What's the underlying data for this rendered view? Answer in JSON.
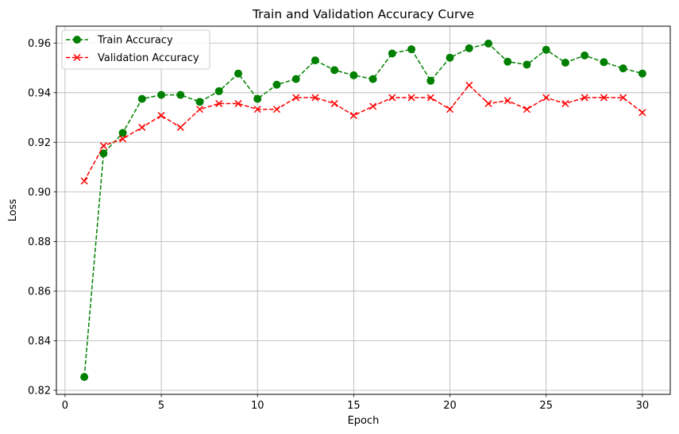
{
  "chart_data": {
    "type": "line",
    "title": "Train and Validation Accuracy Curve",
    "xlabel": "Epoch",
    "ylabel": "Loss",
    "xlim": [
      -0.45,
      31.45
    ],
    "ylim": [
      0.8184,
      0.9668
    ],
    "xticks": [
      0,
      5,
      10,
      15,
      20,
      25,
      30
    ],
    "yticks": [
      0.82,
      0.84,
      0.86,
      0.88,
      0.9,
      0.92,
      0.94,
      0.96
    ],
    "ytick_labels": [
      "0.82",
      "0.84",
      "0.86",
      "0.88",
      "0.90",
      "0.92",
      "0.94",
      "0.96"
    ],
    "grid": true,
    "legend_position": "top-left",
    "x": [
      1,
      2,
      3,
      4,
      5,
      6,
      7,
      8,
      9,
      10,
      11,
      12,
      13,
      14,
      15,
      16,
      17,
      18,
      19,
      20,
      21,
      22,
      23,
      24,
      25,
      26,
      27,
      28,
      29,
      30
    ],
    "series": [
      {
        "name": "Train Accuracy",
        "color": "#008000",
        "marker": "circle",
        "linestyle": "dashed",
        "values": [
          0.8254,
          0.9155,
          0.9238,
          0.9375,
          0.9391,
          0.9391,
          0.9363,
          0.9406,
          0.9477,
          0.9375,
          0.9432,
          0.9455,
          0.953,
          0.9491,
          0.947,
          0.9455,
          0.9558,
          0.9575,
          0.9448,
          0.9541,
          0.9579,
          0.9598,
          0.9525,
          0.9513,
          0.9573,
          0.9521,
          0.955,
          0.9523,
          0.9498,
          0.9477
        ]
      },
      {
        "name": "Validation Accuracy",
        "color": "#ff0000",
        "marker": "x",
        "linestyle": "dashed",
        "values": [
          0.9044,
          0.9186,
          0.9214,
          0.926,
          0.9308,
          0.926,
          0.9333,
          0.9356,
          0.9356,
          0.9333,
          0.9333,
          0.938,
          0.938,
          0.9356,
          0.9308,
          0.9345,
          0.938,
          0.938,
          0.938,
          0.9333,
          0.943,
          0.9356,
          0.9368,
          0.9333,
          0.938,
          0.9356,
          0.938,
          0.938,
          0.938,
          0.932
        ]
      }
    ]
  }
}
